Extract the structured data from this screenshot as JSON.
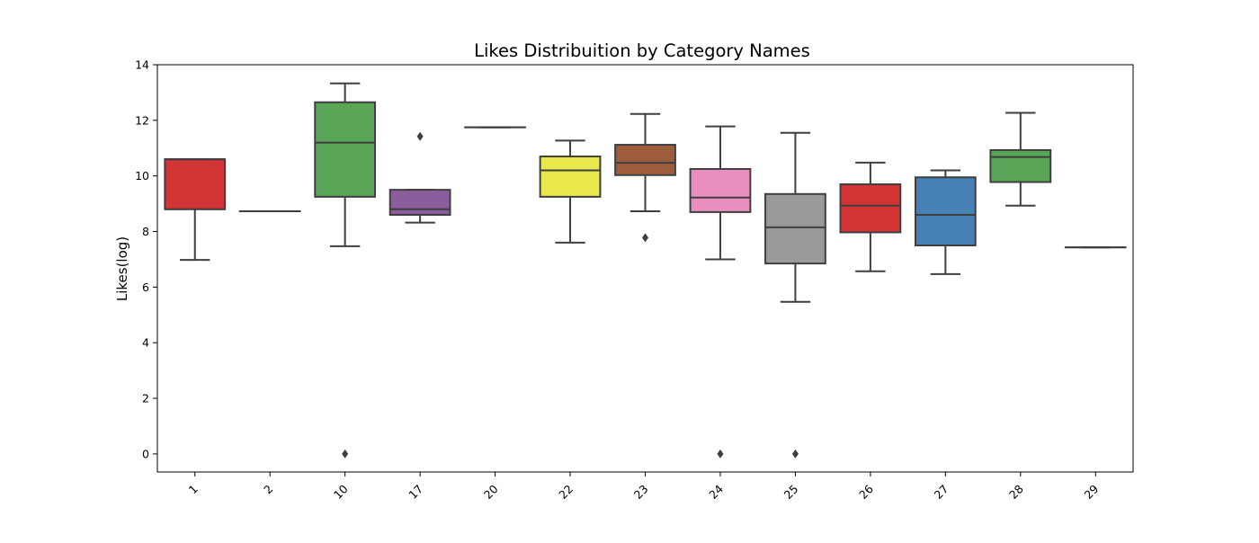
{
  "chart_data": {
    "type": "box",
    "title": "Likes Distribuition by Category Names",
    "xlabel": "",
    "ylabel": "Likes(log)",
    "ylim": [
      -0.65,
      14
    ],
    "yticks": [
      0,
      2,
      4,
      6,
      8,
      10,
      12,
      14
    ],
    "grid": false,
    "categories": [
      "1",
      "2",
      "10",
      "17",
      "20",
      "22",
      "23",
      "24",
      "25",
      "26",
      "27",
      "28",
      "29"
    ],
    "colors": [
      "#d33537",
      "#d33537",
      "#5aa658",
      "#8c5c9d",
      "#f7f54a",
      "#e9e84d",
      "#9d5d3a",
      "#e98fbf",
      "#999999",
      "#d33537",
      "#4680b5",
      "#5aa658",
      "#d33537"
    ],
    "series": [
      {
        "category": "1",
        "whisker_low": 6.98,
        "q1": 8.8,
        "median": 10.6,
        "q3": 10.6,
        "whisker_high": 10.6,
        "outliers": []
      },
      {
        "category": "2",
        "whisker_low": 8.73,
        "q1": 8.73,
        "median": 8.73,
        "q3": 8.73,
        "whisker_high": 8.73,
        "outliers": []
      },
      {
        "category": "10",
        "whisker_low": 7.47,
        "q1": 9.25,
        "median": 11.2,
        "q3": 12.65,
        "whisker_high": 13.33,
        "outliers": [
          0
        ]
      },
      {
        "category": "17",
        "whisker_low": 8.32,
        "q1": 8.6,
        "median": 8.8,
        "q3": 9.5,
        "whisker_high": 9.5,
        "outliers": [
          11.42
        ]
      },
      {
        "category": "20",
        "whisker_low": 11.75,
        "q1": 11.75,
        "median": 11.75,
        "q3": 11.75,
        "whisker_high": 11.75,
        "outliers": []
      },
      {
        "category": "22",
        "whisker_low": 7.6,
        "q1": 9.25,
        "median": 10.2,
        "q3": 10.7,
        "whisker_high": 11.27,
        "outliers": []
      },
      {
        "category": "23",
        "whisker_low": 8.73,
        "q1": 10.03,
        "median": 10.47,
        "q3": 11.12,
        "whisker_high": 12.23,
        "outliers": [
          7.78
        ]
      },
      {
        "category": "24",
        "whisker_low": 7.0,
        "q1": 8.7,
        "median": 9.22,
        "q3": 10.25,
        "whisker_high": 11.78,
        "outliers": [
          0
        ]
      },
      {
        "category": "25",
        "whisker_low": 5.47,
        "q1": 6.85,
        "median": 8.15,
        "q3": 9.35,
        "whisker_high": 11.55,
        "outliers": [
          0
        ]
      },
      {
        "category": "26",
        "whisker_low": 6.57,
        "q1": 7.97,
        "median": 8.93,
        "q3": 9.7,
        "whisker_high": 10.48,
        "outliers": []
      },
      {
        "category": "27",
        "whisker_low": 6.47,
        "q1": 7.5,
        "median": 8.6,
        "q3": 9.95,
        "whisker_high": 10.2,
        "outliers": []
      },
      {
        "category": "28",
        "whisker_low": 8.93,
        "q1": 9.78,
        "median": 10.68,
        "q3": 10.93,
        "whisker_high": 12.27,
        "outliers": []
      },
      {
        "category": "29",
        "whisker_low": 7.43,
        "q1": 7.43,
        "median": 7.43,
        "q3": 7.43,
        "whisker_high": 7.43,
        "outliers": []
      }
    ]
  }
}
